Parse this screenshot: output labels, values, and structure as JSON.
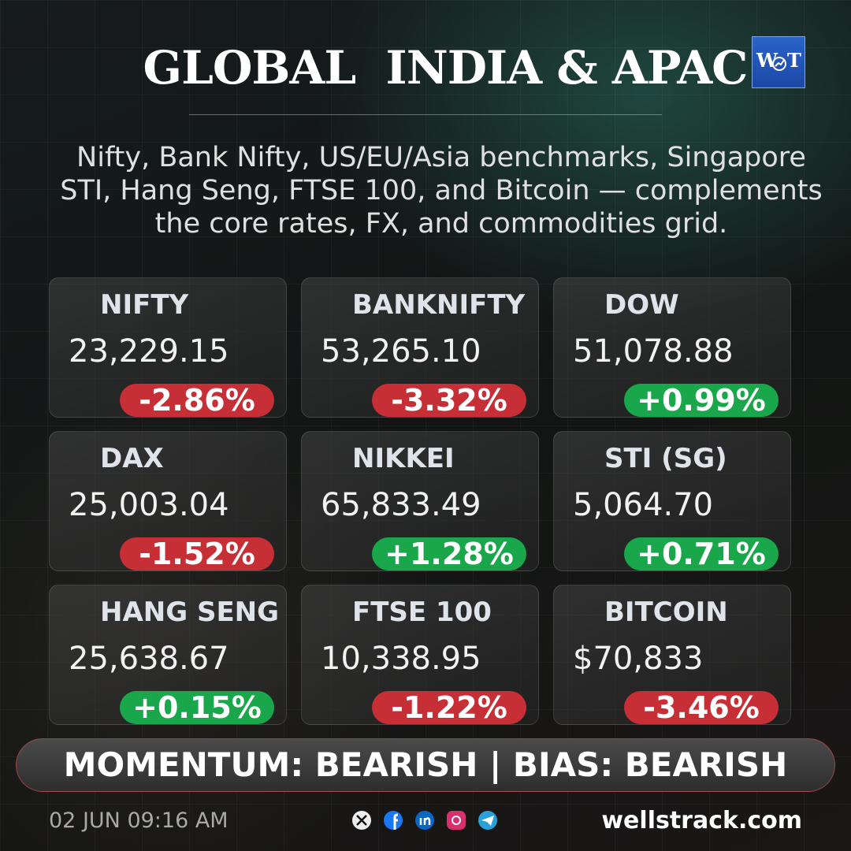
{
  "header": {
    "title": "GLOBAL  INDIA & APAC",
    "logo": {
      "left": "W",
      "right": "T"
    },
    "subtitle_lines": [
      "Nifty, Bank Nifty, US/EU/Asia benchmarks, Singapore",
      "STI, Hang Seng, FTSE 100, and Bitcoin — complements",
      "the core rates, FX, and commodities grid."
    ]
  },
  "tiles": [
    {
      "name": "NIFTY",
      "value": "23,229.15",
      "change": "-2.86%",
      "color": "#c62f35"
    },
    {
      "name": "BANKNIFTY",
      "value": "53,265.10",
      "change": "-3.32%",
      "color": "#c62f35"
    },
    {
      "name": "DOW",
      "value": "51,078.88",
      "change": "+0.99%",
      "color": "#1aa64a"
    },
    {
      "name": "DAX",
      "value": "25,003.04",
      "change": "-1.52%",
      "color": "#c62f35"
    },
    {
      "name": "NIKKEI",
      "value": "65,833.49",
      "change": "+1.28%",
      "color": "#1aa64a"
    },
    {
      "name": "STI (SG)",
      "value": "5,064.70",
      "change": "+0.71%",
      "color": "#1aa64a"
    },
    {
      "name": "HANG SENG",
      "value": "25,638.67",
      "change": "+0.15%",
      "color": "#1aa64a"
    },
    {
      "name": "FTSE 100",
      "value": "10,338.95",
      "change": "-1.22%",
      "color": "#c62f35"
    },
    {
      "name": "BITCOIN",
      "value": "$70,833",
      "change": "-3.46%",
      "color": "#c62f35"
    }
  ],
  "banner": "MOMENTUM: BEARISH | BIAS: BEARISH",
  "footer": {
    "date": "02 JUN 09:16 AM",
    "site": "wellstrack.com"
  }
}
